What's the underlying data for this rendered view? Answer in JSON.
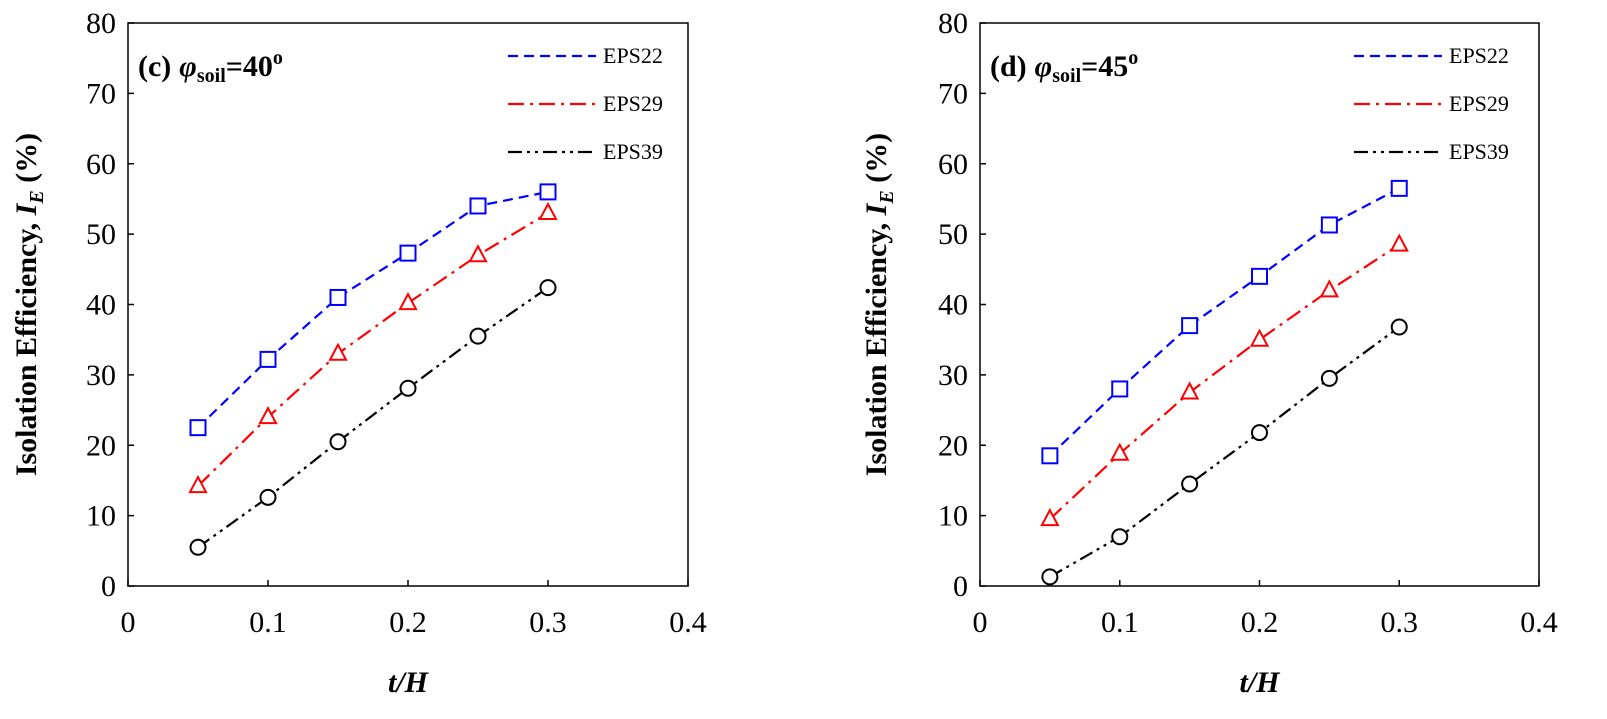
{
  "chart_data": [
    {
      "type": "line",
      "panel_label": "(c)",
      "panel_symbol": "φ",
      "panel_sub": "soil",
      "panel_value": "=40",
      "panel_sup": "o",
      "xlabel": "t/H",
      "ylabel_main": "Isolation Efficiency, ",
      "ylabel_var": "I",
      "ylabel_sub": "E",
      "ylabel_unit": " (%)",
      "xlim": [
        0,
        0.4
      ],
      "ylim": [
        0,
        80
      ],
      "xticks": [
        "0",
        "0.1",
        "0.2",
        "0.3",
        "0.4"
      ],
      "yticks": [
        "0",
        "10",
        "20",
        "30",
        "40",
        "50",
        "60",
        "70",
        "80"
      ],
      "legend_position": "top-right",
      "series": [
        {
          "name": "EPS22",
          "color": "#0000ff",
          "marker": "square",
          "dash": "dash",
          "x": [
            0.05,
            0.1,
            0.15,
            0.2,
            0.25,
            0.3
          ],
          "y": [
            22.5,
            32.2,
            41.0,
            47.3,
            54.0,
            56.0
          ]
        },
        {
          "name": "EPS29",
          "color": "#ff0000",
          "marker": "triangle",
          "dash": "dashdot",
          "x": [
            0.05,
            0.1,
            0.15,
            0.2,
            0.25,
            0.3
          ],
          "y": [
            14.2,
            24.0,
            33.0,
            40.2,
            47.0,
            53.0
          ]
        },
        {
          "name": "EPS39",
          "color": "#000000",
          "marker": "circle",
          "dash": "dashdotdot",
          "x": [
            0.05,
            0.1,
            0.15,
            0.2,
            0.25,
            0.3
          ],
          "y": [
            5.5,
            12.6,
            20.5,
            28.1,
            35.5,
            42.4
          ]
        }
      ]
    },
    {
      "type": "line",
      "panel_label": "(d)",
      "panel_symbol": "φ",
      "panel_sub": "soil",
      "panel_value": "=45",
      "panel_sup": "o",
      "xlabel": "t/H",
      "ylabel_main": "Isolation Efficiency, ",
      "ylabel_var": "I",
      "ylabel_sub": "E",
      "ylabel_unit": " (%)",
      "xlim": [
        0,
        0.4
      ],
      "ylim": [
        0,
        80
      ],
      "xticks": [
        "0",
        "0.1",
        "0.2",
        "0.3",
        "0.4"
      ],
      "yticks": [
        "0",
        "10",
        "20",
        "30",
        "40",
        "50",
        "60",
        "70",
        "80"
      ],
      "legend_position": "top-right",
      "series": [
        {
          "name": "EPS22",
          "color": "#0000ff",
          "marker": "square",
          "dash": "dash",
          "x": [
            0.05,
            0.1,
            0.15,
            0.2,
            0.25,
            0.3
          ],
          "y": [
            18.5,
            28.0,
            37.0,
            44.0,
            51.3,
            56.5
          ]
        },
        {
          "name": "EPS29",
          "color": "#ff0000",
          "marker": "triangle",
          "dash": "dashdot",
          "x": [
            0.05,
            0.1,
            0.15,
            0.2,
            0.25,
            0.3
          ],
          "y": [
            9.5,
            18.8,
            27.5,
            35.0,
            42.0,
            48.5
          ]
        },
        {
          "name": "EPS39",
          "color": "#000000",
          "marker": "circle",
          "dash": "dashdotdot",
          "x": [
            0.05,
            0.1,
            0.15,
            0.2,
            0.25,
            0.3
          ],
          "y": [
            1.3,
            7.0,
            14.5,
            21.8,
            29.5,
            36.8
          ]
        }
      ]
    }
  ]
}
